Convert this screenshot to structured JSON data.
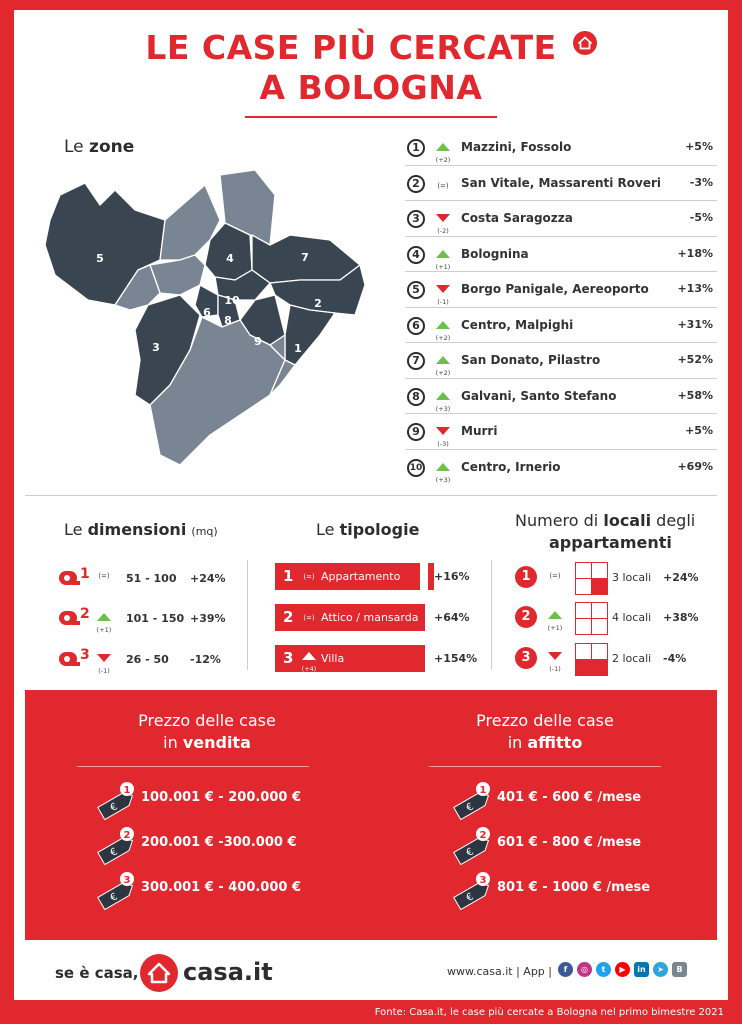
{
  "title": {
    "line1": "LE CASE PIÙ CERCATE",
    "line2": "A BOLOGNA"
  },
  "zones": {
    "heading_prefix": "Le",
    "heading_bold": "zone",
    "map_labels": [
      "1",
      "2",
      "3",
      "4",
      "5",
      "6",
      "7",
      "8",
      "9",
      "10"
    ],
    "ranking": [
      {
        "rank": "1",
        "trend": "up",
        "trend_label": "(+2)",
        "name": "Mazzini,  Fossolo",
        "value": "+5%"
      },
      {
        "rank": "2",
        "trend": "eq",
        "trend_label": "(=)",
        "name": "San Vitale, Massarenti Roveri",
        "value": "-3%"
      },
      {
        "rank": "3",
        "trend": "down",
        "trend_label": "(-2)",
        "name": "Costa Saragozza",
        "value": "-5%"
      },
      {
        "rank": "4",
        "trend": "up",
        "trend_label": "(+1)",
        "name": "Bolognina",
        "value": "+18%"
      },
      {
        "rank": "5",
        "trend": "down",
        "trend_label": "(-1)",
        "name": "Borgo Panigale, Aereoporto",
        "value": "+13%"
      },
      {
        "rank": "6",
        "trend": "up",
        "trend_label": "(+2)",
        "name": "Centro, Malpighi",
        "value": "+31%"
      },
      {
        "rank": "7",
        "trend": "up",
        "trend_label": "(+2)",
        "name": "San Donato, Pilastro",
        "value": "+52%"
      },
      {
        "rank": "8",
        "trend": "up",
        "trend_label": "(+3)",
        "name": "Galvani, Santo Stefano",
        "value": "+58%"
      },
      {
        "rank": "9",
        "trend": "down",
        "trend_label": "(-3)",
        "name": "Murri",
        "value": "+5%"
      },
      {
        "rank": "10",
        "trend": "up",
        "trend_label": "(+3)",
        "name": "Centro, Irnerio",
        "value": "+69%"
      }
    ]
  },
  "dimensions": {
    "heading_prefix": "Le",
    "heading_bold": "dimensioni",
    "heading_unit": "(mq)",
    "items": [
      {
        "rank": "1",
        "trend": "eq",
        "trend_label": "(=)",
        "range": "51 - 100",
        "value": "+24%"
      },
      {
        "rank": "2",
        "trend": "up",
        "trend_label": "(+1)",
        "range": "101 - 150",
        "value": "+39%"
      },
      {
        "rank": "3",
        "trend": "down",
        "trend_label": "(-1)",
        "range": "26 - 50",
        "value": "-12%"
      }
    ]
  },
  "typologies": {
    "heading_prefix": "Le",
    "heading_bold": "tipologie",
    "items": [
      {
        "rank": "1",
        "trend": "eq",
        "trend_label": "(=)",
        "label": "Appartamento",
        "value": "+16%"
      },
      {
        "rank": "2",
        "trend": "eq",
        "trend_label": "(=)",
        "label": "Attico / mansarda",
        "value": "+64%"
      },
      {
        "rank": "3",
        "trend": "up",
        "trend_label": "(+4)",
        "label": "Villa",
        "value": "+154%"
      }
    ]
  },
  "rooms": {
    "heading_line1_prefix": "Numero di",
    "heading_line1_bold": "locali",
    "heading_line1_suffix": "degli",
    "heading_line2_bold": "appartamenti",
    "items": [
      {
        "rank": "1",
        "trend": "eq",
        "trend_label": "(=)",
        "filled_cells": 3,
        "label": "3 locali",
        "value": "+24%"
      },
      {
        "rank": "2",
        "trend": "up",
        "trend_label": "(+1)",
        "filled_cells": 4,
        "label": "4 locali",
        "value": "+38%"
      },
      {
        "rank": "3",
        "trend": "down",
        "trend_label": "(-1)",
        "filled_cells": 2,
        "label": "2 locali",
        "value": "-4%"
      }
    ]
  },
  "prices": {
    "sale": {
      "heading_line1": "Prezzo delle case",
      "heading_line2_prefix": "in",
      "heading_line2_bold": "vendita",
      "items": [
        {
          "rank": "1",
          "range": "100.001 € - 200.000 €"
        },
        {
          "rank": "2",
          "range": "200.001 € -300.000 €"
        },
        {
          "rank": "3",
          "range": "300.001 € - 400.000 €"
        }
      ]
    },
    "rent": {
      "heading_line1": "Prezzo delle case",
      "heading_line2_prefix": "in",
      "heading_line2_bold": "affitto",
      "items": [
        {
          "rank": "1",
          "range": "401 € - 600 € /mese"
        },
        {
          "rank": "2",
          "range": "601 € - 800 € /mese"
        },
        {
          "rank": "3",
          "range": "801 € - 1000 € /mese"
        }
      ]
    },
    "currency_symbol": "€"
  },
  "footer": {
    "slogan": "se è casa, è",
    "logo_text": "casa.it",
    "site": "www.casa.it | App |",
    "social": [
      {
        "name": "facebook-icon",
        "glyph": "f",
        "color": "#3b5998"
      },
      {
        "name": "instagram-icon",
        "glyph": "◎",
        "color": "#c13584"
      },
      {
        "name": "twitter-icon",
        "glyph": "t",
        "color": "#1da1f2"
      },
      {
        "name": "youtube-icon",
        "glyph": "▶",
        "color": "#ff0000"
      },
      {
        "name": "linkedin-icon",
        "glyph": "in",
        "color": "#0077b5"
      },
      {
        "name": "telegram-icon",
        "glyph": "➤",
        "color": "#2ca5e0"
      },
      {
        "name": "blog-icon",
        "glyph": "B",
        "color": "#7a8593"
      }
    ],
    "source": "Fonte: Casa.it, le case più cercate a Bologna nel primo bimestre 2021"
  },
  "colors": {
    "accent": "#e0282e",
    "dark_zone": "#3a4552",
    "light_zone": "#7a8593",
    "trend_up": "#6cbf4b",
    "trend_down": "#e0282e"
  }
}
